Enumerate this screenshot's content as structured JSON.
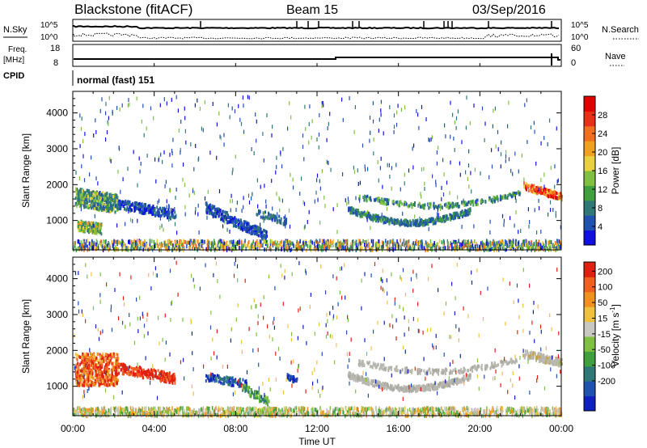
{
  "header": {
    "station": "Blackstone (fitACF)",
    "beam": "Beam 15",
    "date": "03/Sep/2016"
  },
  "top_panels": {
    "nsky": {
      "label": "N.Sky",
      "tick_top": "10^5",
      "tick_bottom": "10^0"
    },
    "nsearch": {
      "label": "N.Search",
      "tick_top": "10^5",
      "tick_bottom": "10^0"
    },
    "freq": {
      "label_line1": "Freq.",
      "label_line2": "[MHz]",
      "tick_top": "18",
      "tick_bottom": "8"
    },
    "nave": {
      "label": "Nave",
      "tick_top": "60",
      "tick_bottom": "0"
    },
    "cpid": {
      "label": "CPID",
      "value": "normal (fast) 151"
    }
  },
  "chart_data": [
    {
      "type": "heatmap",
      "title": "",
      "xlabel": "Time UT",
      "ylabel": "Slant Range [km]",
      "x_ticks": [
        "00:00",
        "04:00",
        "08:00",
        "12:00",
        "16:00",
        "20:00",
        "00:00"
      ],
      "y_ticks": [
        "1000",
        "2000",
        "3000",
        "4000"
      ],
      "xlim_hours": [
        0,
        24
      ],
      "ylim_km": [
        180,
        4600
      ],
      "colorbar": {
        "label": "Power [dB]",
        "ticks": [
          "4",
          "8",
          "12",
          "16",
          "20",
          "24",
          "28"
        ],
        "colors": [
          "#1010e0",
          "#2050b0",
          "#307878",
          "#40a040",
          "#80c040",
          "#e8d040",
          "#f0a020",
          "#f07020",
          "#e83018",
          "#e00000"
        ]
      }
    },
    {
      "type": "heatmap",
      "title": "",
      "xlabel": "Time UT",
      "ylabel": "Slant Range [km]",
      "x_ticks": [
        "00:00",
        "04:00",
        "08:00",
        "12:00",
        "16:00",
        "20:00",
        "00:00"
      ],
      "y_ticks": [
        "1000",
        "2000",
        "3000",
        "4000"
      ],
      "xlim_hours": [
        0,
        24
      ],
      "ylim_km": [
        180,
        4600
      ],
      "colorbar": {
        "label": "Velocity [m s^-1]",
        "ticks": [
          "200",
          "100",
          "50",
          "15",
          "-15",
          "-50",
          "-100",
          "-200"
        ],
        "colors": [
          "#1020c0",
          "#2050b0",
          "#307878",
          "#40a040",
          "#80c040",
          "#c8c8c0",
          "#f0c040",
          "#f09020",
          "#f06020",
          "#e02010"
        ]
      }
    }
  ],
  "colors": {
    "ground_scatter": "#b8b8b0",
    "axis": "#000000"
  }
}
